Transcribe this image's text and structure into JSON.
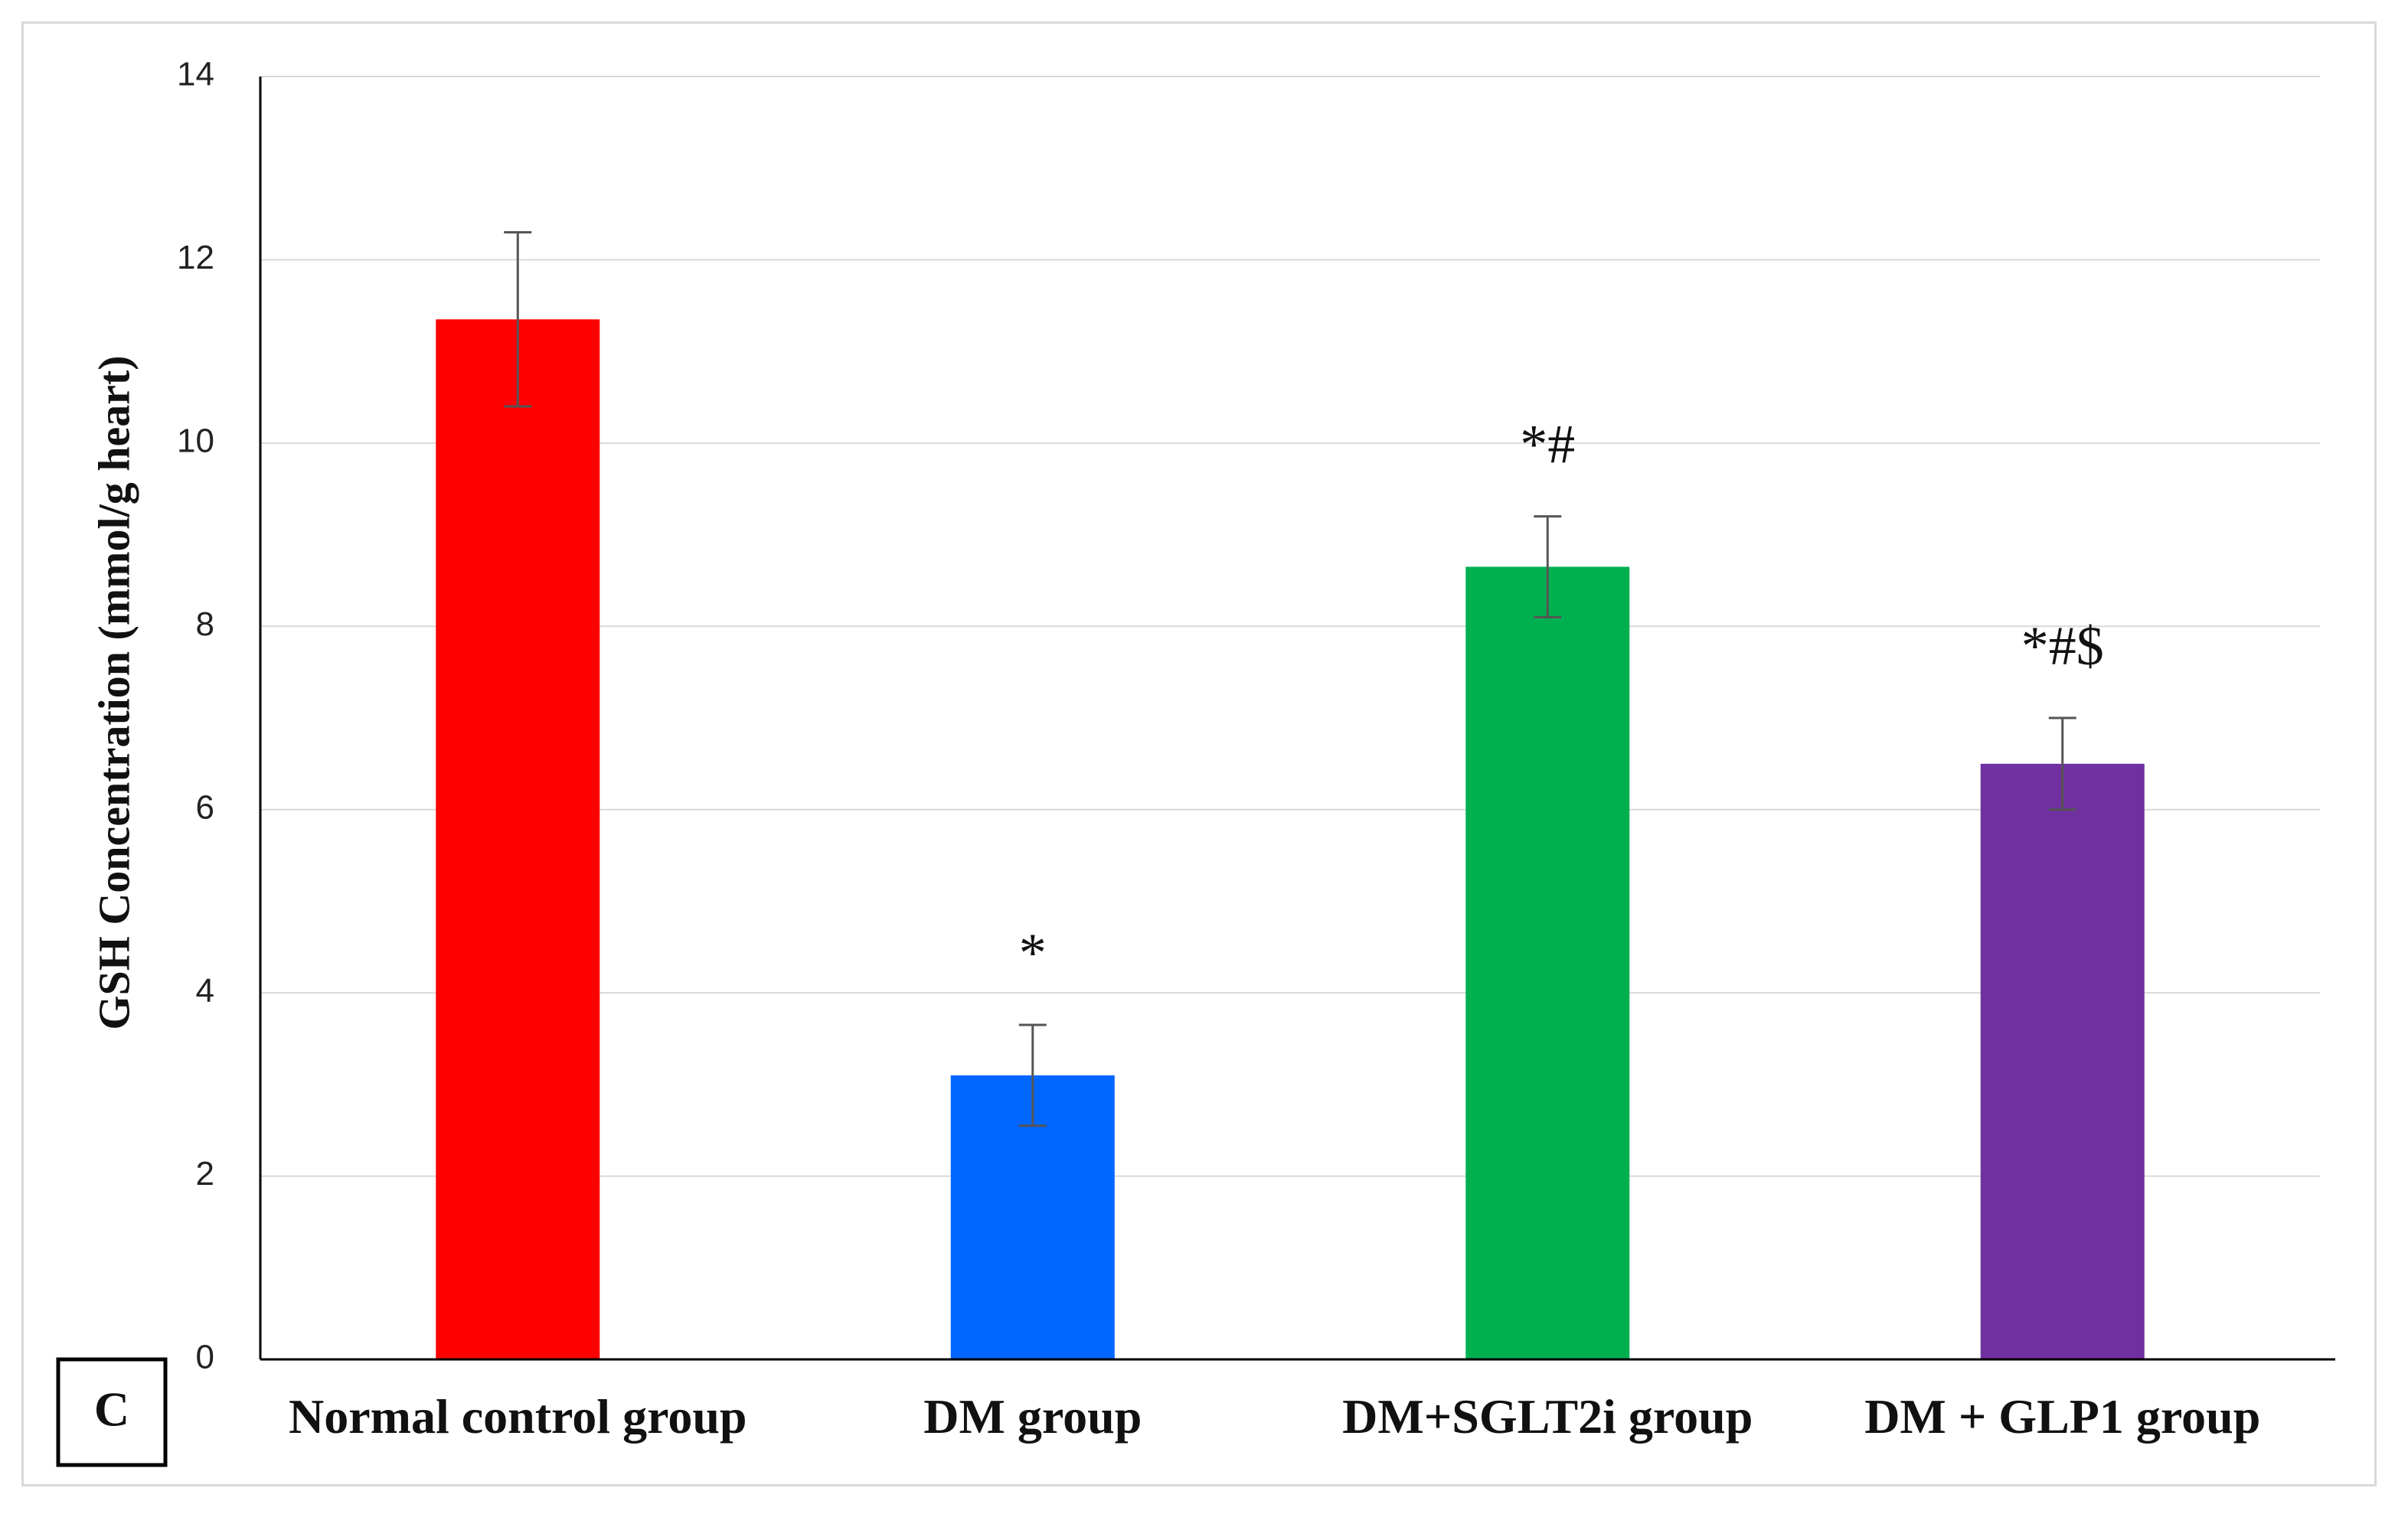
{
  "chart_data": {
    "type": "bar",
    "categories": [
      "Normal control group",
      "DM group",
      "DM+SGLT2i group",
      "DM + GLP1 group"
    ],
    "values": [
      11.35,
      3.1,
      8.65,
      6.5
    ],
    "errors": [
      0.95,
      0.55,
      0.55,
      0.5
    ],
    "colors": [
      "#ff0000",
      "#0066ff",
      "#00b050",
      "#7030a0"
    ],
    "significance": [
      "",
      "*",
      "*#",
      "*#$"
    ],
    "ylabel": "GSH Concentration (mmol/g heart)",
    "xlabel": "",
    "ylim": [
      0,
      14
    ],
    "yticks": [
      0,
      2,
      4,
      6,
      8,
      10,
      12,
      14
    ],
    "grid": true,
    "legend": "none"
  },
  "panel_label": "C"
}
